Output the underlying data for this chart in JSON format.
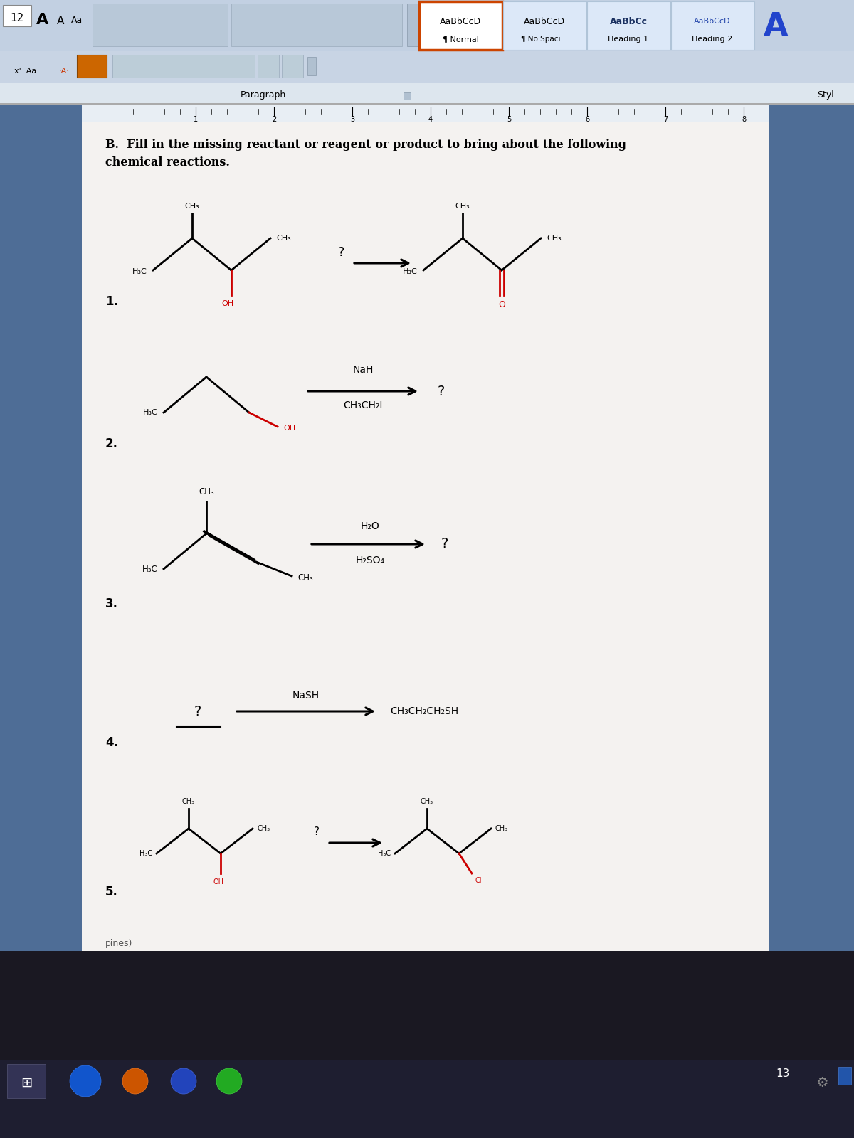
{
  "toolbar_bg": "#b8c8dc",
  "toolbar2_bg": "#c0cfe0",
  "ruler_bg": "#dde8f0",
  "page_bg": "#f2f0ee",
  "left_strip": "#4a6d9a",
  "right_strip": "#4a6d9a",
  "taskbar_bg": "#1a1a2e",
  "red": "#cc0000",
  "black": "#000000",
  "title": "B.  Fill in the missing reactant or reagent or product to bring about the following\nchemical reactions.",
  "rxn1_label": "1.",
  "rxn2_label": "2.",
  "rxn3_label": "3.",
  "rxn4_label": "4.",
  "rxn5_label": "5."
}
